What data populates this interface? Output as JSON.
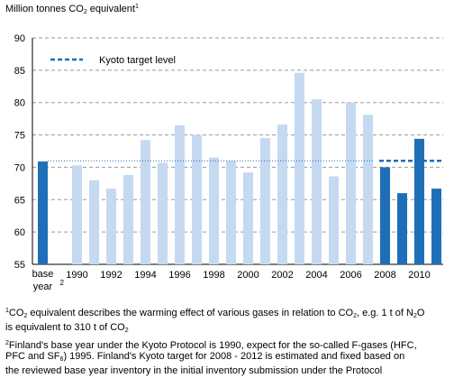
{
  "chart_data": {
    "type": "bar",
    "y_title": {
      "pre": "Million tonnes CO",
      "sub": "2",
      "post": " equivalent",
      "sup": "1"
    },
    "ylim": [
      55,
      90
    ],
    "yticks": [
      55,
      60,
      65,
      70,
      75,
      80,
      85,
      90
    ],
    "grid": "horizontal dashed",
    "categories": [
      "base year",
      "1990",
      "1991",
      "1992",
      "1993",
      "1994",
      "1995",
      "1996",
      "1997",
      "1998",
      "1999",
      "2000",
      "2001",
      "2002",
      "2003",
      "2004",
      "2005",
      "2006",
      "2007",
      "2008",
      "2009",
      "2010",
      "2011"
    ],
    "x_tick_labels": [
      "1990",
      "1992",
      "1994",
      "1996",
      "1998",
      "2000",
      "2002",
      "2004",
      "2006",
      "2008",
      "2010"
    ],
    "base_label": {
      "line1": "base",
      "line2": "year",
      "sup": "2"
    },
    "values": [
      70.9,
      70.3,
      68.0,
      66.7,
      68.8,
      74.2,
      70.7,
      76.5,
      75.0,
      71.5,
      71.0,
      69.2,
      74.5,
      76.6,
      84.6,
      80.5,
      68.6,
      80.0,
      78.1,
      70.0,
      66.0,
      74.4,
      66.7
    ],
    "highlighted": [
      "base year",
      "2008",
      "2009",
      "2010",
      "2011"
    ],
    "kyoto_target_level": 71.0,
    "legend": {
      "label": "Kyoto target level",
      "position": "top-left"
    },
    "colors": {
      "highlight": "#1f6fb8",
      "normal": "#c5d9f1",
      "target": "#1f6fb8",
      "grid": "#9a9a9a"
    }
  },
  "footnotes": {
    "note1": {
      "sup": "1",
      "parts": [
        "CO",
        "2",
        " equivalent describes the warming effect of various gases in relation to CO",
        "2",
        ", e.g. 1 t of N",
        "2",
        "O"
      ],
      "line2_parts": [
        "is equivalent to 310 t of CO",
        "2"
      ]
    },
    "note2": {
      "sup": "2",
      "line1": "Finland's base year under the Kyoto Protocol is 1990, expect for the so-called F-gases (HFC,",
      "line2_parts": [
        "PFC and SF",
        "6",
        ") 1995. Finland's Kyoto target for 2008 - 2012 is estimated and fixed based on"
      ],
      "line3": "the reviewed base year inventory in the initial inventory submission under the Protocol"
    }
  }
}
